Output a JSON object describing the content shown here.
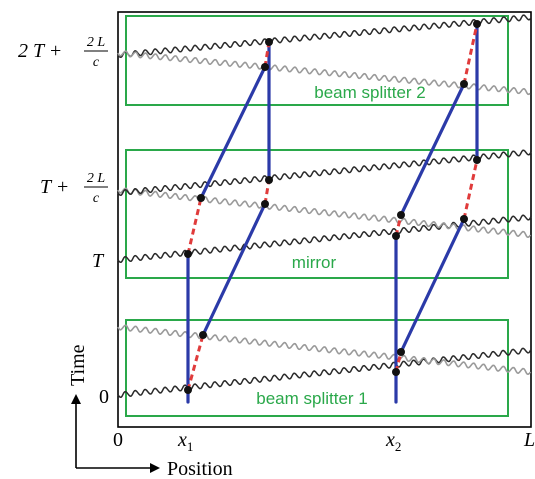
{
  "axes": {
    "x_title": "Position",
    "y_title": "Time",
    "x_ticks": {
      "origin": "0",
      "x1": "x",
      "x1_sub": "1",
      "x2": "x",
      "x2_sub": "2",
      "end": "L"
    },
    "y_ticks": {
      "zero": "0",
      "T": "T",
      "T_plus": {
        "lead": "T +",
        "num": "2 L",
        "den": "c"
      },
      "two_T_plus": {
        "lead": "2 T +",
        "num": "2 L",
        "den": "c"
      }
    }
  },
  "boxes": {
    "beam_splitter_1": "beam splitter 1",
    "mirror": "mirror",
    "beam_splitter_2": "beam splitter 2"
  },
  "colors": {
    "box": "#2aa84a",
    "label": "#2aa84a",
    "atom_path": "#2b3aa8",
    "dashed_path": "#e03b3b",
    "wave_dark": "#2a2a2a",
    "wave_light": "#9a9a9a",
    "dot": "#111111"
  }
}
